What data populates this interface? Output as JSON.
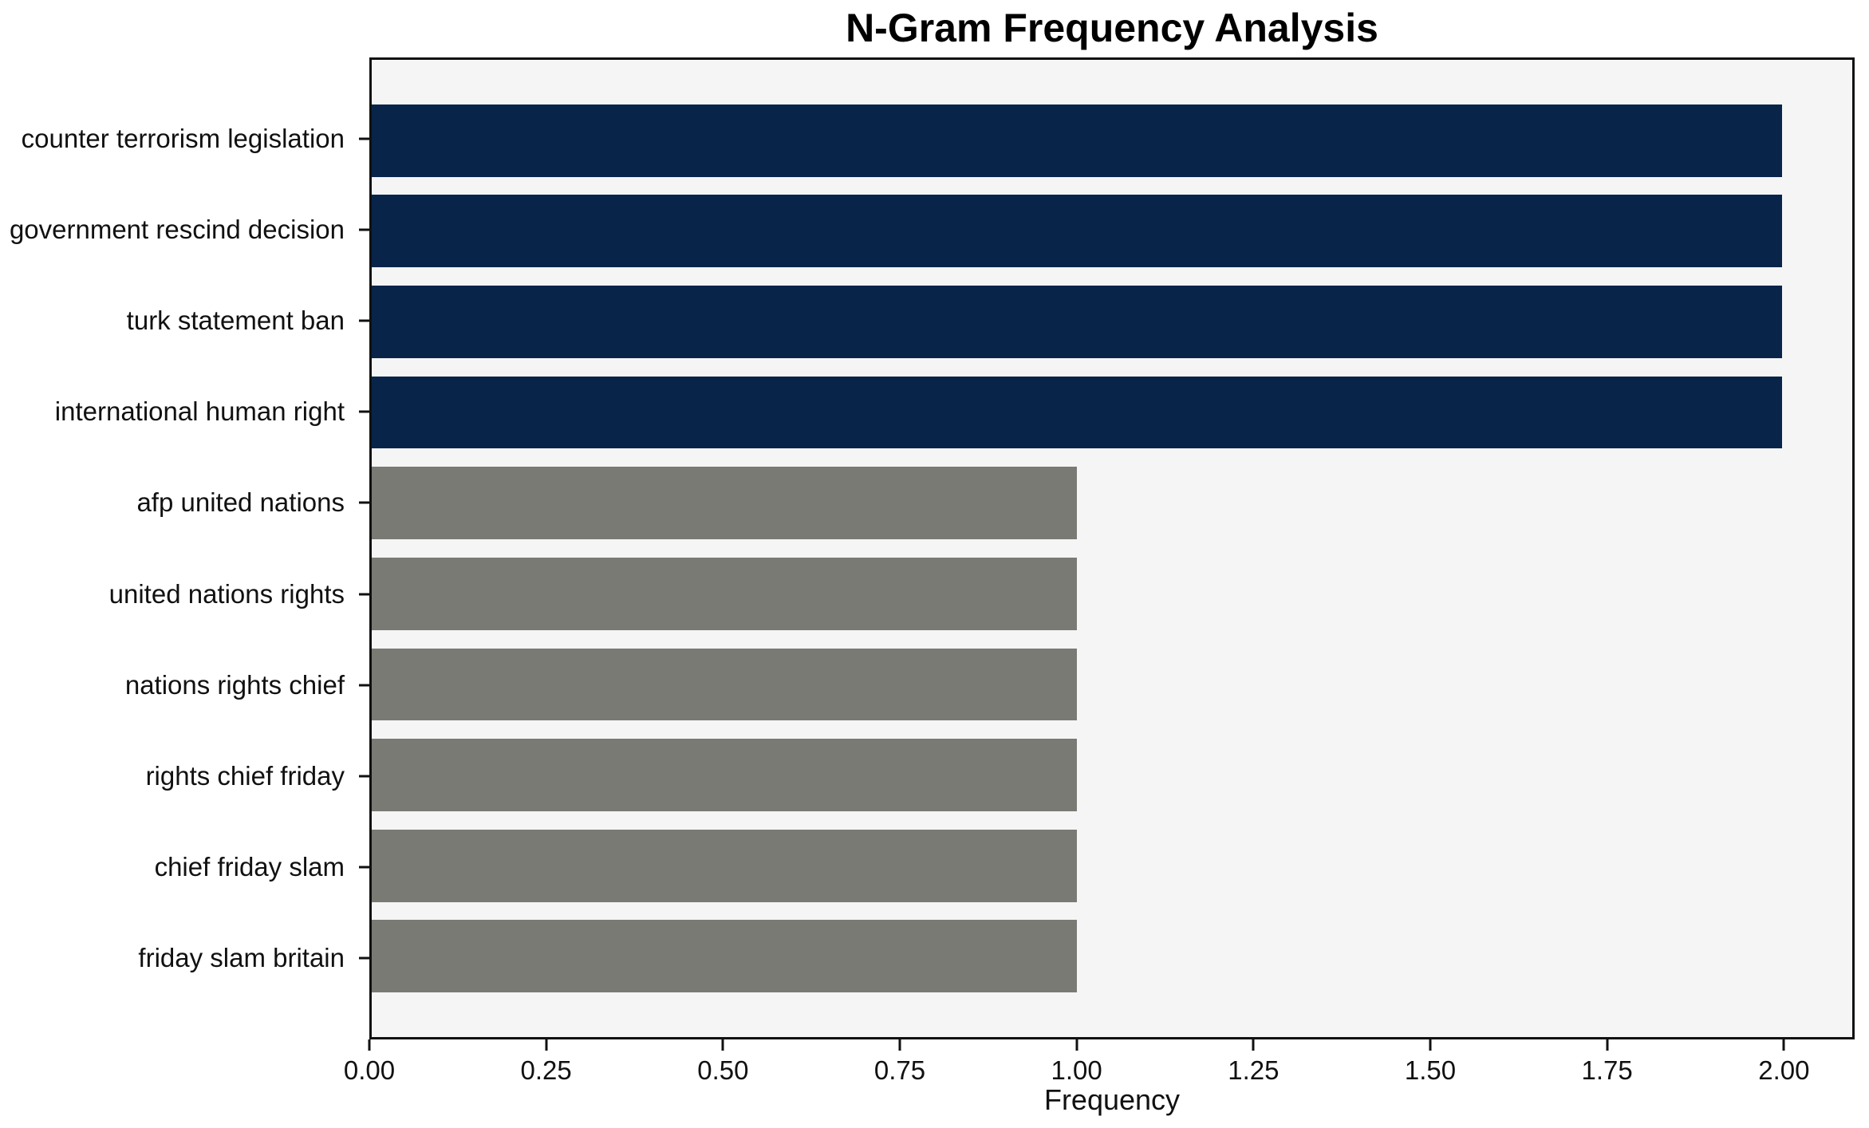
{
  "chart_data": {
    "type": "bar",
    "orientation": "horizontal",
    "title": "N-Gram Frequency Analysis",
    "xlabel": "Frequency",
    "ylabel": "",
    "categories": [
      "counter terrorism legislation",
      "government rescind decision",
      "turk statement ban",
      "international human right",
      "afp united nations",
      "united nations rights",
      "nations rights chief",
      "rights chief friday",
      "chief friday slam",
      "friday slam britain"
    ],
    "values": [
      2,
      2,
      2,
      2,
      1,
      1,
      1,
      1,
      1,
      1
    ],
    "bar_colors": [
      "#082449",
      "#082449",
      "#082449",
      "#082449",
      "#7a7a75",
      "#7a7a75",
      "#7a7a75",
      "#7a7a75",
      "#7a7a75",
      "#7a7a75"
    ],
    "xlim": [
      0,
      2.1
    ],
    "xticks": [
      0.0,
      0.25,
      0.5,
      0.75,
      1.0,
      1.25,
      1.5,
      1.75,
      2.0
    ],
    "xtick_labels": [
      "0.00",
      "0.25",
      "0.50",
      "0.75",
      "1.00",
      "1.25",
      "1.50",
      "1.75",
      "2.00"
    ],
    "grid": false,
    "legend": "none",
    "plot_background": "#f5f5f6",
    "frame_color": "#111111",
    "colors": {
      "highlight_navy": "#082449",
      "base_gray": "#7a7a75"
    },
    "layout": {
      "bar_fraction": 0.8,
      "y_outer_margin": 0.89
    }
  }
}
